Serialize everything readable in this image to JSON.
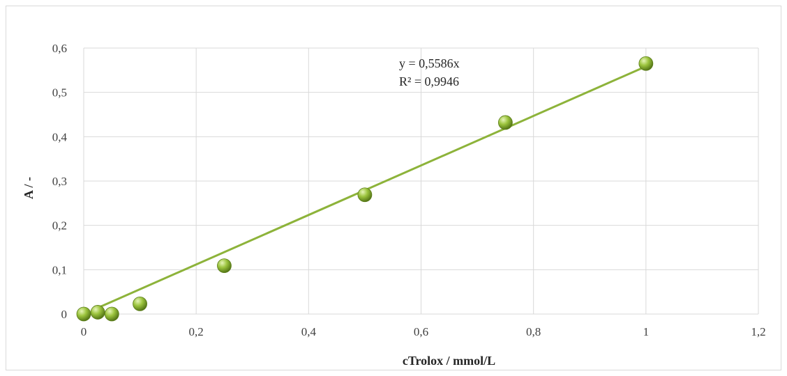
{
  "chart_data": {
    "type": "scatter",
    "xlabel": "cTrolox / mmol/L",
    "ylabel": "A / -",
    "xlim": [
      0,
      1.2
    ],
    "ylim": [
      0,
      0.6
    ],
    "xticks": [
      0,
      0.2,
      0.4,
      0.6,
      0.8,
      1,
      1.2
    ],
    "yticks": [
      0,
      0.1,
      0.2,
      0.3,
      0.4,
      0.5,
      0.6
    ],
    "xtick_labels": [
      "0",
      "0,2",
      "0,4",
      "0,6",
      "0,8",
      "1",
      "1,2"
    ],
    "ytick_labels": [
      "0",
      "0,1",
      "0,2",
      "0,3",
      "0,4",
      "0,5",
      "0,6"
    ],
    "grid": true,
    "series": [
      {
        "x": [
          0,
          0.025,
          0.05,
          0.1,
          0.25,
          0.5,
          0.75,
          1.0
        ],
        "y": [
          0.0,
          0.004,
          0.0,
          0.023,
          0.109,
          0.269,
          0.432,
          0.565
        ],
        "color": "#8db33a"
      }
    ],
    "trendline": {
      "type": "linear",
      "slope": 0.5586,
      "x_range": [
        0.025,
        1.0
      ],
      "color": "#8db33a"
    },
    "annotations": [
      "y = 0,5586x",
      "R² = 0,9946"
    ]
  }
}
